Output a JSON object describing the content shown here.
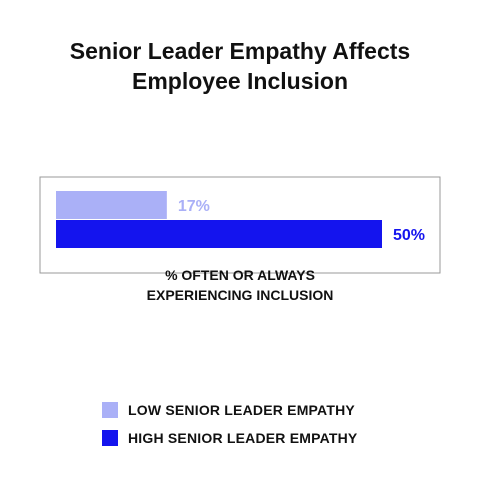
{
  "title_lines": [
    "Senior Leader Empathy Affects",
    "Employee Inclusion"
  ],
  "colors": {
    "low": "#aab0f7",
    "high": "#1414ee",
    "frame": "#999999"
  },
  "chart_data": {
    "type": "bar",
    "orientation": "horizontal",
    "title": "Senior Leader Empathy Affects Employee Inclusion",
    "xlabel_lines": [
      "% OFTEN OR ALWAYS",
      "EXPERIENCING INCLUSION"
    ],
    "xlim": [
      0,
      50
    ],
    "grid": false,
    "legend_position": "bottom",
    "series": [
      {
        "name": "LOW SENIOR LEADER EMPATHY",
        "value": 17,
        "label": "17%",
        "color": "#aab0f7"
      },
      {
        "name": "HIGH SENIOR LEADER EMPATHY",
        "value": 50,
        "label": "50%",
        "color": "#1414ee"
      }
    ]
  }
}
